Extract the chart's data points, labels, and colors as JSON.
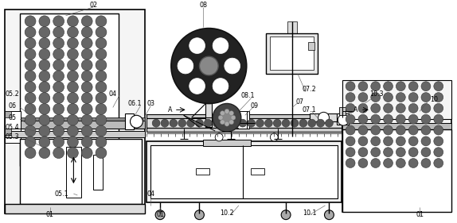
{
  "bg_color": "#ffffff",
  "line_color": "#000000",
  "figsize": [
    5.74,
    2.81
  ],
  "dpi": 100,
  "gray_dark": "#444444",
  "gray_mid": "#888888",
  "gray_light": "#cccccc",
  "gray_fill": "#aaaaaa",
  "egg_color": "#555555"
}
